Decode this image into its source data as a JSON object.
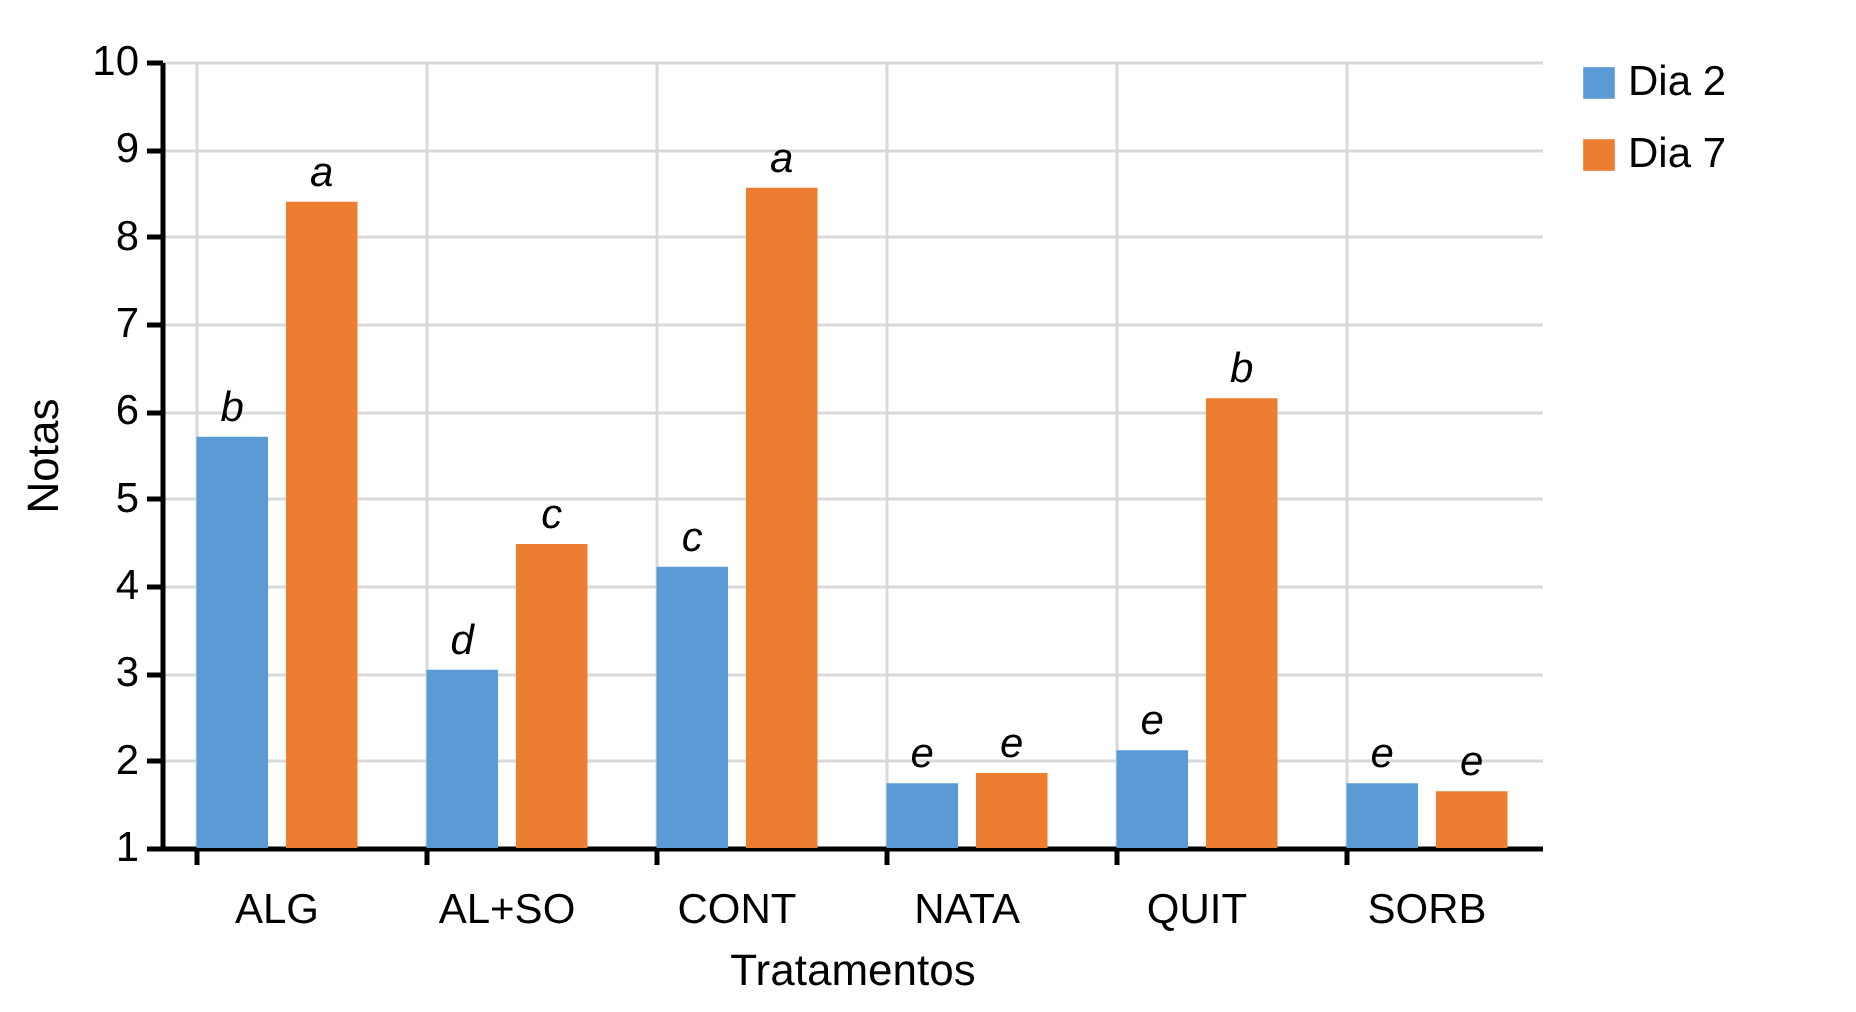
{
  "chart_data": {
    "type": "bar",
    "xlabel": "Tratamentos",
    "ylabel": "Notas",
    "categories": [
      "ALG",
      "AL+SO",
      "CONT",
      "NATA",
      "QUIT",
      "SORB"
    ],
    "series": [
      {
        "name": "Dia 2",
        "color": "#5b9bd5",
        "values": [
          5.71,
          3.04,
          4.22,
          1.74,
          2.12,
          1.74
        ]
      },
      {
        "name": "Dia 7",
        "color": "#ed7d31",
        "values": [
          8.4,
          4.48,
          8.56,
          1.86,
          6.15,
          1.65
        ]
      }
    ],
    "ylim": [
      1,
      10
    ],
    "yticks": [
      1,
      2,
      3,
      4,
      5,
      6,
      7,
      8,
      9,
      10
    ],
    "grid": true,
    "legend": "right",
    "annotations": [
      "b",
      "a",
      "d",
      "c",
      "c",
      "a",
      "e",
      "e",
      "e",
      "b",
      "e",
      "e"
    ]
  }
}
